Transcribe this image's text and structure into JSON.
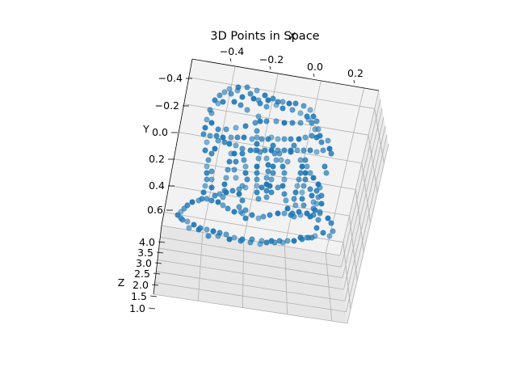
{
  "chart_data": {
    "type": "scatter",
    "title": "3D Points in Space",
    "xlabel": "X",
    "ylabel": "Y",
    "zlabel": "Z",
    "x_ticks": [
      "−0.4",
      "−0.2",
      "0.0",
      "0.2"
    ],
    "y_ticks": [
      "−0.4",
      "−0.2",
      "0.0",
      "0.2",
      "0.4",
      "0.6"
    ],
    "z_ticks": [
      "4.0",
      "3.5",
      "3.0",
      "2.5",
      "2.0",
      "1.5",
      "1.0"
    ],
    "marker_color": "#1f77b4",
    "grid": true,
    "points_2d_projected": [
      [
        284,
        110
      ],
      [
        295,
        108
      ],
      [
        306,
        108
      ],
      [
        318,
        112
      ],
      [
        328,
        118
      ],
      [
        338,
        122
      ],
      [
        350,
        126
      ],
      [
        358,
        128
      ],
      [
        366,
        128
      ],
      [
        376,
        131
      ],
      [
        384,
        136
      ],
      [
        266,
        124
      ],
      [
        272,
        118
      ],
      [
        278,
        114
      ],
      [
        290,
        126
      ],
      [
        298,
        130
      ],
      [
        306,
        136
      ],
      [
        314,
        122
      ],
      [
        322,
        128
      ],
      [
        330,
        132
      ],
      [
        342,
        130
      ],
      [
        350,
        134
      ],
      [
        260,
        136
      ],
      [
        256,
        148
      ],
      [
        254,
        158
      ],
      [
        252,
        166
      ],
      [
        262,
        140
      ],
      [
        262,
        152
      ],
      [
        270,
        160
      ],
      [
        280,
        160
      ],
      [
        292,
        158
      ],
      [
        304,
        156
      ],
      [
        316,
        152
      ],
      [
        320,
        144
      ],
      [
        322,
        150
      ],
      [
        330,
        150
      ],
      [
        342,
        150
      ],
      [
        352,
        152
      ],
      [
        362,
        152
      ],
      [
        372,
        152
      ],
      [
        382,
        148
      ],
      [
        388,
        144
      ],
      [
        392,
        150
      ],
      [
        394,
        160
      ],
      [
        396,
        168
      ],
      [
        398,
        176
      ],
      [
        406,
        174
      ],
      [
        408,
        184
      ],
      [
        410,
        190
      ],
      [
        400,
        186
      ],
      [
        392,
        188
      ],
      [
        384,
        186
      ],
      [
        376,
        186
      ],
      [
        368,
        186
      ],
      [
        360,
        186
      ],
      [
        352,
        186
      ],
      [
        344,
        186
      ],
      [
        336,
        186
      ],
      [
        328,
        186
      ],
      [
        322,
        188
      ],
      [
        316,
        186
      ],
      [
        310,
        186
      ],
      [
        300,
        184
      ],
      [
        292,
        180
      ],
      [
        284,
        178
      ],
      [
        278,
        176
      ],
      [
        270,
        174
      ],
      [
        266,
        184
      ],
      [
        262,
        190
      ],
      [
        258,
        198
      ],
      [
        256,
        206
      ],
      [
        256,
        214
      ],
      [
        256,
        222
      ],
      [
        254,
        230
      ],
      [
        252,
        238
      ],
      [
        250,
        246
      ],
      [
        246,
        248
      ],
      [
        238,
        250
      ],
      [
        232,
        254
      ],
      [
        228,
        258
      ],
      [
        224,
        262
      ],
      [
        220,
        266
      ],
      [
        226,
        272
      ],
      [
        232,
        274
      ],
      [
        240,
        278
      ],
      [
        248,
        282
      ],
      [
        256,
        284
      ],
      [
        264,
        286
      ],
      [
        272,
        288
      ],
      [
        280,
        290
      ],
      [
        290,
        294
      ],
      [
        300,
        296
      ],
      [
        312,
        296
      ],
      [
        324,
        298
      ],
      [
        336,
        298
      ],
      [
        346,
        298
      ],
      [
        356,
        298
      ],
      [
        364,
        298
      ],
      [
        374,
        296
      ],
      [
        382,
        294
      ],
      [
        390,
        292
      ],
      [
        392,
        282
      ],
      [
        394,
        272
      ],
      [
        396,
        262
      ],
      [
        398,
        252
      ],
      [
        398,
        242
      ],
      [
        396,
        232
      ],
      [
        394,
        228
      ],
      [
        402,
        206
      ],
      [
        404,
        214
      ],
      [
        286,
        190
      ],
      [
        284,
        200
      ],
      [
        282,
        210
      ],
      [
        280,
        220
      ],
      [
        278,
        228
      ],
      [
        278,
        236
      ],
      [
        276,
        244
      ],
      [
        290,
        190
      ],
      [
        292,
        200
      ],
      [
        290,
        210
      ],
      [
        292,
        220
      ],
      [
        300,
        190
      ],
      [
        302,
        198
      ],
      [
        304,
        206
      ],
      [
        304,
        214
      ],
      [
        306,
        222
      ],
      [
        300,
        230
      ],
      [
        296,
        240
      ],
      [
        300,
        248
      ],
      [
        296,
        256
      ],
      [
        300,
        264
      ],
      [
        304,
        270
      ],
      [
        318,
        162
      ],
      [
        318,
        170
      ],
      [
        318,
        178
      ],
      [
        318,
        186
      ],
      [
        320,
        196
      ],
      [
        318,
        206
      ],
      [
        318,
        214
      ],
      [
        318,
        222
      ],
      [
        318,
        230
      ],
      [
        318,
        238
      ],
      [
        320,
        246
      ],
      [
        330,
        196
      ],
      [
        332,
        204
      ],
      [
        332,
        212
      ],
      [
        330,
        220
      ],
      [
        330,
        228
      ],
      [
        330,
        236
      ],
      [
        330,
        244
      ],
      [
        336,
        170
      ],
      [
        338,
        180
      ],
      [
        340,
        190
      ],
      [
        342,
        198
      ],
      [
        338,
        206
      ],
      [
        338,
        214
      ],
      [
        336,
        222
      ],
      [
        334,
        230
      ],
      [
        336,
        238
      ],
      [
        346,
        190
      ],
      [
        348,
        198
      ],
      [
        350,
        206
      ],
      [
        352,
        214
      ],
      [
        352,
        222
      ],
      [
        350,
        230
      ],
      [
        352,
        240
      ],
      [
        354,
        248
      ],
      [
        356,
        258
      ],
      [
        360,
        266
      ],
      [
        364,
        268
      ],
      [
        372,
        266
      ],
      [
        380,
        264
      ],
      [
        388,
        258
      ],
      [
        388,
        250
      ],
      [
        386,
        242
      ],
      [
        384,
        234
      ],
      [
        372,
        198
      ],
      [
        374,
        206
      ],
      [
        372,
        214
      ],
      [
        370,
        222
      ],
      [
        368,
        230
      ],
      [
        366,
        238
      ],
      [
        364,
        246
      ],
      [
        366,
        254
      ],
      [
        370,
        262
      ],
      [
        378,
        198
      ],
      [
        380,
        206
      ],
      [
        378,
        214
      ],
      [
        378,
        222
      ],
      [
        376,
        230
      ],
      [
        374,
        238
      ],
      [
        374,
        246
      ],
      [
        376,
        254
      ],
      [
        380,
        264
      ],
      [
        384,
        268
      ],
      [
        388,
        266
      ],
      [
        396,
        264
      ],
      [
        406,
        270
      ],
      [
        410,
        276
      ],
      [
        412,
        286
      ],
      [
        408,
        292
      ],
      [
        400,
        288
      ],
      [
        386,
        294
      ],
      [
        380,
        294
      ],
      [
        372,
        294
      ],
      [
        362,
        264
      ],
      [
        352,
        264
      ],
      [
        344,
        264
      ],
      [
        334,
        266
      ],
      [
        326,
        268
      ],
      [
        320,
        270
      ],
      [
        312,
        266
      ],
      [
        304,
        260
      ],
      [
        298,
        262
      ],
      [
        290,
        262
      ],
      [
        282,
        258
      ],
      [
        276,
        254
      ],
      [
        270,
        250
      ],
      [
        262,
        248
      ],
      [
        256,
        246
      ],
      [
        270,
        128
      ],
      [
        276,
        126
      ],
      [
        286,
        116
      ],
      [
        294,
        112
      ],
      [
        300,
        120
      ],
      [
        310,
        116
      ],
      [
        320,
        124
      ],
      [
        332,
        124
      ],
      [
        344,
        126
      ],
      [
        362,
        136
      ],
      [
        372,
        140
      ],
      [
        380,
        144
      ],
      [
        386,
        152
      ],
      [
        390,
        160
      ],
      [
        392,
        170
      ],
      [
        386,
        168
      ],
      [
        378,
        170
      ],
      [
        370,
        172
      ],
      [
        360,
        172
      ],
      [
        352,
        172
      ],
      [
        344,
        172
      ],
      [
        332,
        172
      ],
      [
        324,
        172
      ],
      [
        312,
        172
      ],
      [
        302,
        170
      ],
      [
        294,
        170
      ],
      [
        286,
        170
      ],
      [
        276,
        170
      ],
      [
        268,
        168
      ],
      [
        260,
        168
      ],
      [
        256,
        176
      ],
      [
        254,
        186
      ],
      [
        262,
        212
      ],
      [
        262,
        222
      ],
      [
        262,
        232
      ],
      [
        266,
        242
      ],
      [
        272,
        240
      ],
      [
        280,
        238
      ],
      [
        288,
        236
      ],
      [
        296,
        234
      ],
      [
        304,
        232
      ],
      [
        324,
        232
      ],
      [
        344,
        232
      ],
      [
        356,
        200
      ],
      [
        360,
        188
      ],
      [
        364,
        180
      ],
      [
        384,
        214
      ],
      [
        388,
        220
      ],
      [
        392,
        236
      ],
      [
        394,
        244
      ],
      [
        392,
        252
      ],
      [
        390,
        260
      ],
      [
        224,
        270
      ],
      [
        234,
        282
      ],
      [
        246,
        284
      ],
      [
        258,
        292
      ],
      [
        270,
        292
      ],
      [
        284,
        296
      ],
      [
        298,
        298
      ],
      [
        310,
        300
      ],
      [
        322,
        302
      ],
      [
        330,
        300
      ],
      [
        340,
        300
      ],
      [
        350,
        300
      ]
    ]
  }
}
